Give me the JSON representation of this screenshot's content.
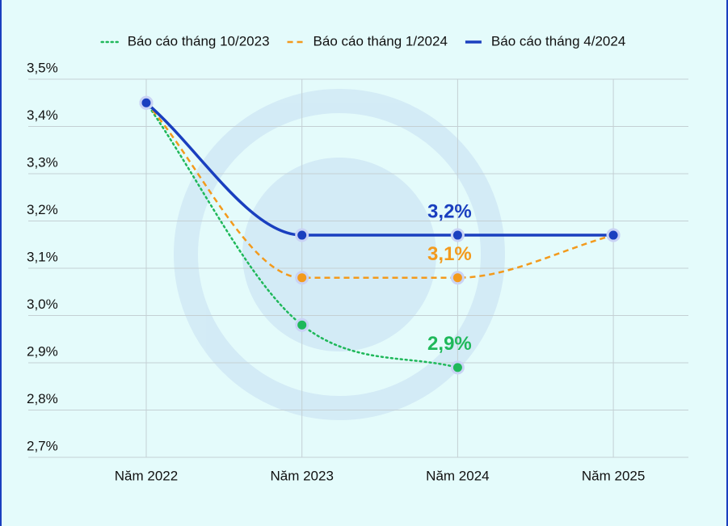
{
  "chart_data": {
    "type": "line",
    "categories": [
      "Năm 2022",
      "Năm 2023",
      "Năm 2024",
      "Năm 2025"
    ],
    "series": [
      {
        "name": "Báo cáo tháng 10/2023",
        "color": "#1fb85a",
        "style": "dotted",
        "values": [
          3.45,
          2.98,
          2.89,
          null
        ],
        "value_labels": [
          null,
          null,
          "2,9%",
          null
        ]
      },
      {
        "name": "Báo cáo tháng 1/2024",
        "color": "#f39a1c",
        "style": "dashed",
        "values": [
          3.45,
          3.08,
          3.08,
          3.17
        ],
        "value_labels": [
          null,
          null,
          "3,1%",
          null
        ]
      },
      {
        "name": "Báo cáo tháng 4/2024",
        "color": "#1a3fbf",
        "style": "solid",
        "values": [
          3.45,
          3.17,
          3.17,
          3.17
        ],
        "value_labels": [
          null,
          null,
          "3,2%",
          null
        ]
      }
    ],
    "ylim": [
      2.7,
      3.5
    ],
    "yticks": [
      {
        "value": 2.7,
        "label": "2,7%"
      },
      {
        "value": 2.8,
        "label": "2,8%"
      },
      {
        "value": 2.9,
        "label": "2,9%"
      },
      {
        "value": 3.0,
        "label": "3,0%"
      },
      {
        "value": 3.1,
        "label": "3,1%"
      },
      {
        "value": 3.2,
        "label": "3,2%"
      },
      {
        "value": 3.3,
        "label": "3,3%"
      },
      {
        "value": 3.4,
        "label": "3,4%"
      },
      {
        "value": 3.5,
        "label": "3,5%"
      }
    ],
    "grid": true
  }
}
